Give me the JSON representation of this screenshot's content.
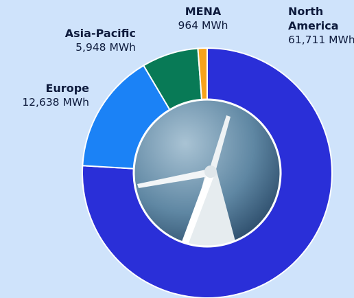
{
  "chart_data": {
    "type": "donut",
    "categories": [
      "North America",
      "Europe",
      "Asia-Pacific",
      "MENA"
    ],
    "values": [
      61711,
      12638,
      5948,
      964
    ],
    "value_labels": [
      "61,711 MWh",
      "12,638 MWh",
      "5,948 MWh",
      "964 MWh"
    ],
    "colors": [
      "#2a2fd8",
      "#1b82f6",
      "#087a56",
      "#f7a21b"
    ]
  }
}
